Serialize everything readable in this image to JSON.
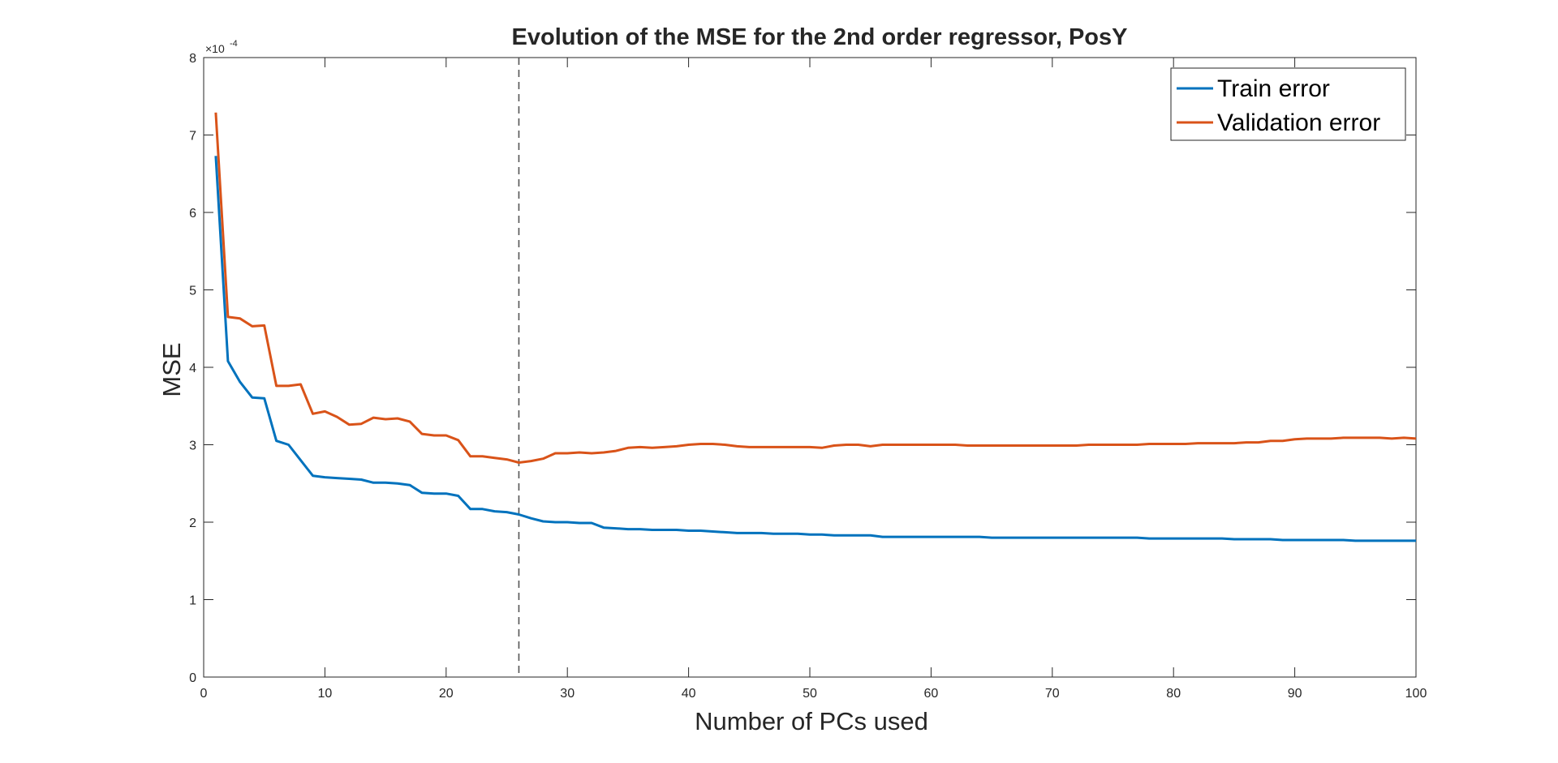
{
  "chart_data": {
    "type": "line",
    "title": "Evolution of the MSE for the 2nd order regressor, PosY",
    "xlabel": "Number of PCs used",
    "ylabel": "MSE",
    "y_exponent_label": "×10",
    "y_exponent_power": "-4",
    "xlim": [
      0,
      100
    ],
    "ylim": [
      0,
      8
    ],
    "xticks": [
      0,
      10,
      20,
      30,
      40,
      50,
      60,
      70,
      80,
      90,
      100
    ],
    "yticks": [
      0,
      1,
      2,
      3,
      4,
      5,
      6,
      7,
      8
    ],
    "grid": false,
    "legend_position": "top-right",
    "vline": {
      "x": 26,
      "style": "dashed",
      "color": "#555555"
    },
    "x": [
      1,
      2,
      3,
      4,
      5,
      6,
      7,
      8,
      9,
      10,
      11,
      12,
      13,
      14,
      15,
      16,
      17,
      18,
      19,
      20,
      21,
      22,
      23,
      24,
      25,
      26,
      27,
      28,
      29,
      30,
      31,
      32,
      33,
      34,
      35,
      36,
      37,
      38,
      39,
      40,
      41,
      42,
      43,
      44,
      45,
      46,
      47,
      48,
      49,
      50,
      51,
      52,
      53,
      54,
      55,
      56,
      57,
      58,
      59,
      60,
      61,
      62,
      63,
      64,
      65,
      66,
      67,
      68,
      69,
      70,
      71,
      72,
      73,
      74,
      75,
      76,
      77,
      78,
      79,
      80,
      81,
      82,
      83,
      84,
      85,
      86,
      87,
      88,
      89,
      90,
      91,
      92,
      93,
      94,
      95,
      96,
      97,
      98,
      99,
      100
    ],
    "series": [
      {
        "name": "Train error",
        "color": "#0072BD",
        "values": [
          6.73,
          4.08,
          3.81,
          3.61,
          3.6,
          3.05,
          3.0,
          2.8,
          2.6,
          2.58,
          2.57,
          2.56,
          2.55,
          2.51,
          2.51,
          2.5,
          2.48,
          2.38,
          2.37,
          2.37,
          2.34,
          2.17,
          2.17,
          2.14,
          2.13,
          2.1,
          2.05,
          2.01,
          2.0,
          2.0,
          1.99,
          1.99,
          1.93,
          1.92,
          1.91,
          1.91,
          1.9,
          1.9,
          1.9,
          1.89,
          1.89,
          1.88,
          1.87,
          1.86,
          1.86,
          1.86,
          1.85,
          1.85,
          1.85,
          1.84,
          1.84,
          1.83,
          1.83,
          1.83,
          1.83,
          1.81,
          1.81,
          1.81,
          1.81,
          1.81,
          1.81,
          1.81,
          1.81,
          1.81,
          1.8,
          1.8,
          1.8,
          1.8,
          1.8,
          1.8,
          1.8,
          1.8,
          1.8,
          1.8,
          1.8,
          1.8,
          1.8,
          1.79,
          1.79,
          1.79,
          1.79,
          1.79,
          1.79,
          1.79,
          1.78,
          1.78,
          1.78,
          1.78,
          1.77,
          1.77,
          1.77,
          1.77,
          1.77,
          1.77,
          1.76,
          1.76,
          1.76,
          1.76,
          1.76,
          1.76
        ]
      },
      {
        "name": "Validation error",
        "color": "#D95319",
        "values": [
          7.29,
          4.65,
          4.63,
          4.53,
          4.54,
          3.76,
          3.76,
          3.78,
          3.4,
          3.43,
          3.36,
          3.26,
          3.27,
          3.35,
          3.33,
          3.34,
          3.3,
          3.14,
          3.12,
          3.12,
          3.06,
          2.85,
          2.85,
          2.83,
          2.81,
          2.77,
          2.79,
          2.82,
          2.89,
          2.89,
          2.9,
          2.89,
          2.9,
          2.92,
          2.96,
          2.97,
          2.96,
          2.97,
          2.98,
          3.0,
          3.01,
          3.01,
          3.0,
          2.98,
          2.97,
          2.97,
          2.97,
          2.97,
          2.97,
          2.97,
          2.96,
          2.99,
          3.0,
          3.0,
          2.98,
          3.0,
          3.0,
          3.0,
          3.0,
          3.0,
          3.0,
          3.0,
          2.99,
          2.99,
          2.99,
          2.99,
          2.99,
          2.99,
          2.99,
          2.99,
          2.99,
          2.99,
          3.0,
          3.0,
          3.0,
          3.0,
          3.0,
          3.01,
          3.01,
          3.01,
          3.01,
          3.02,
          3.02,
          3.02,
          3.02,
          3.03,
          3.03,
          3.05,
          3.05,
          3.07,
          3.08,
          3.08,
          3.08,
          3.09,
          3.09,
          3.09,
          3.09,
          3.08,
          3.09,
          3.08
        ]
      }
    ]
  }
}
